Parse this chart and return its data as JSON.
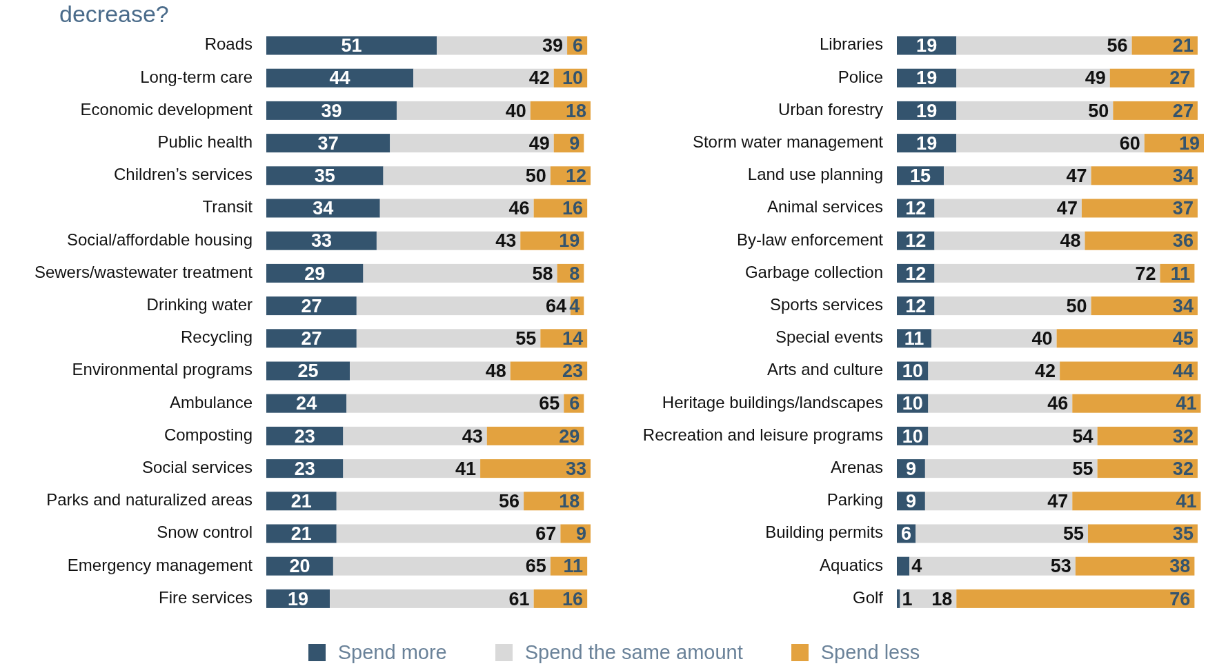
{
  "chart_data": [
    {
      "type": "bar",
      "title": "decrease?",
      "orientation": "horizontal",
      "stacked": true,
      "data_labels": true,
      "legend": "bottom",
      "tick_labels": "y",
      "categories": [
        "Roads",
        "Long-term care",
        "Economic development",
        "Public health",
        "Children’s services",
        "Transit",
        "Social/affordable housing",
        "Sewers/wastewater treatment",
        "Drinking water",
        "Recycling",
        "Environmental programs",
        "Ambulance",
        "Composting",
        "Social services",
        "Parks and naturalized areas",
        "Snow control",
        "Emergency management",
        "Fire services"
      ],
      "series": [
        {
          "name": "Spend more",
          "color": "#34546e",
          "values": [
            51,
            44,
            39,
            37,
            35,
            34,
            33,
            29,
            27,
            27,
            25,
            24,
            23,
            23,
            21,
            21,
            20,
            19
          ]
        },
        {
          "name": "Spend the same amount",
          "color": "#d9d9d9",
          "values": [
            39,
            42,
            40,
            49,
            50,
            46,
            43,
            58,
            64,
            55,
            48,
            65,
            43,
            41,
            56,
            67,
            65,
            61
          ]
        },
        {
          "name": "Spend less",
          "color": "#e3a23f",
          "values": [
            6,
            10,
            18,
            9,
            12,
            16,
            19,
            8,
            4,
            14,
            23,
            6,
            29,
            33,
            18,
            9,
            11,
            16
          ]
        }
      ]
    },
    {
      "type": "bar",
      "orientation": "horizontal",
      "stacked": true,
      "data_labels": true,
      "tick_labels": "y",
      "categories": [
        "Libraries",
        "Police",
        "Urban forestry",
        "Storm water management",
        "Land use planning",
        "Animal services",
        "By-law enforcement",
        "Garbage collection",
        "Sports services",
        "Special events",
        "Arts and culture",
        "Heritage buildings/landscapes",
        "Recreation and leisure programs",
        "Arenas",
        "Parking",
        "Building permits",
        "Aquatics",
        "Golf"
      ],
      "series": [
        {
          "color": "#34546e",
          "values": [
            19,
            19,
            19,
            19,
            15,
            12,
            12,
            12,
            12,
            11,
            10,
            10,
            10,
            9,
            9,
            6,
            4,
            1
          ]
        },
        {
          "color": "#d9d9d9",
          "values": [
            56,
            49,
            50,
            60,
            47,
            47,
            48,
            72,
            50,
            40,
            42,
            46,
            54,
            55,
            47,
            55,
            53,
            18
          ]
        },
        {
          "color": "#e3a23f",
          "values": [
            21,
            27,
            27,
            19,
            34,
            37,
            36,
            11,
            34,
            45,
            44,
            41,
            32,
            32,
            41,
            35,
            38,
            76
          ]
        }
      ]
    }
  ]
}
